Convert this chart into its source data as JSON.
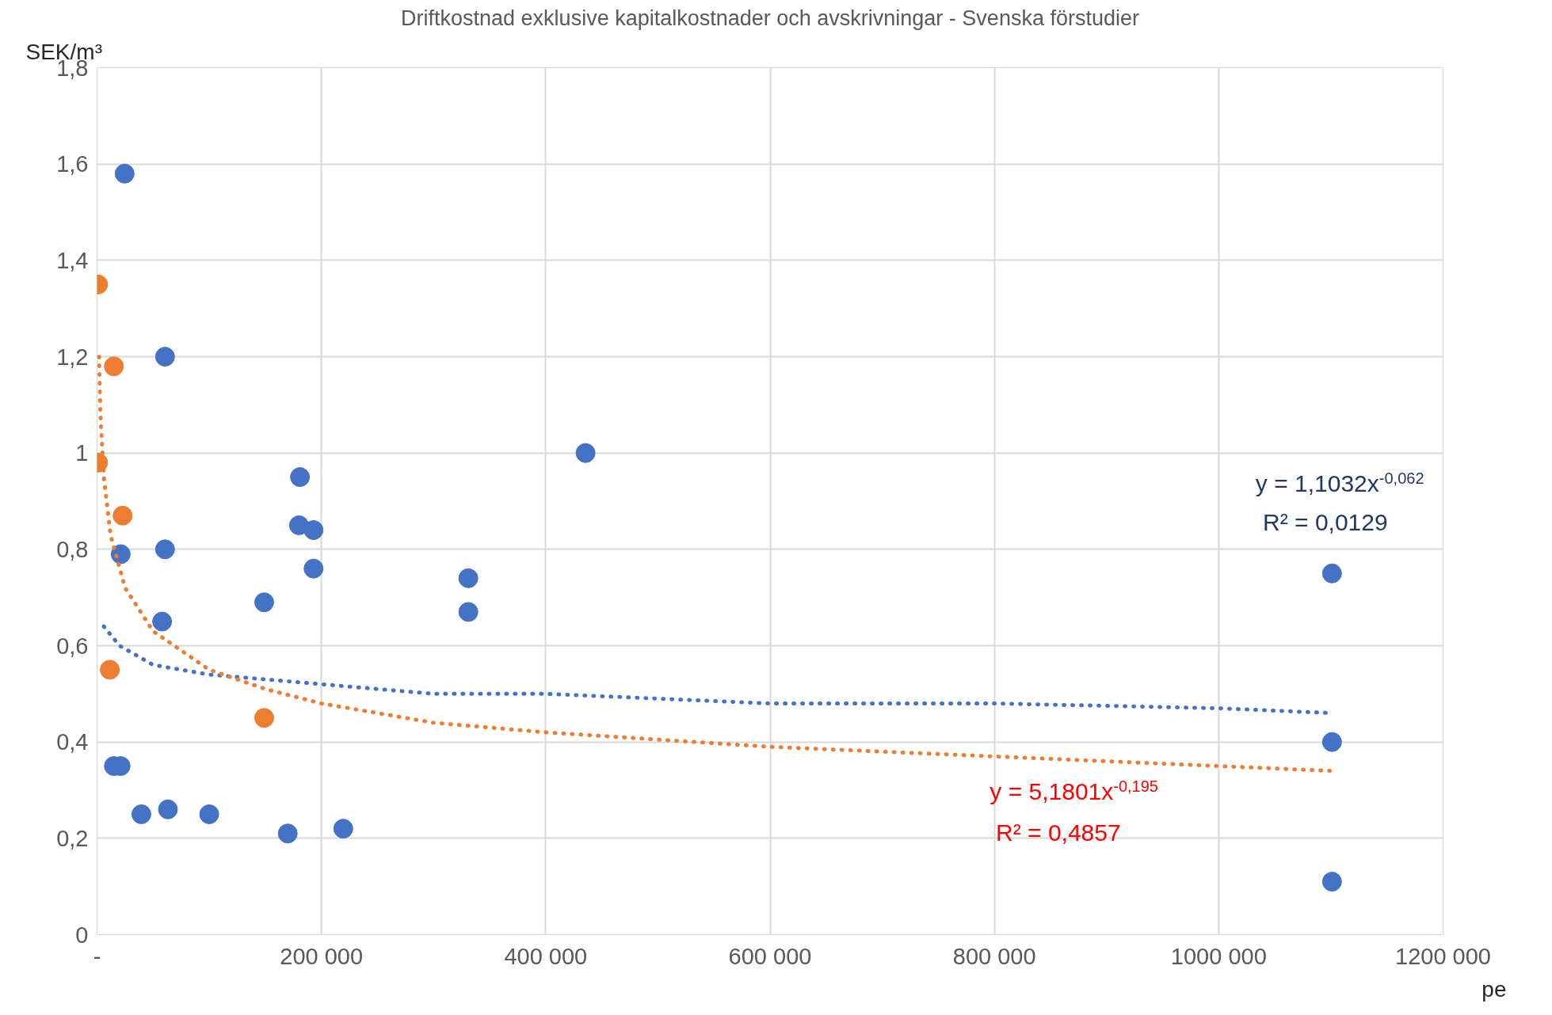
{
  "chart_data": {
    "type": "scatter",
    "title": "Driftkostnad exklusive kapitalkostnader och avskrivningar - Svenska förstudier",
    "xlabel": "pe",
    "ylabel": "SEK/m³",
    "xlim": [
      0,
      1200000
    ],
    "ylim": [
      0,
      1.8
    ],
    "xticks": [
      {
        "value": 0,
        "label": "-"
      },
      {
        "value": 200000,
        "label": "200 000"
      },
      {
        "value": 400000,
        "label": "400 000"
      },
      {
        "value": 600000,
        "label": "600 000"
      },
      {
        "value": 800000,
        "label": "800 000"
      },
      {
        "value": 1000000,
        "label": "1000 000"
      },
      {
        "value": 1200000,
        "label": "1200 000"
      }
    ],
    "yticks": [
      0,
      {
        "value": 0.2,
        "label": "0,2"
      },
      {
        "value": 0.4,
        "label": "0,4"
      },
      {
        "value": 0.6,
        "label": "0,6"
      },
      {
        "value": 0.8,
        "label": "0,8"
      },
      1,
      {
        "value": 1.2,
        "label": "1,2"
      },
      {
        "value": 1.4,
        "label": "1,4"
      },
      {
        "value": 1.6,
        "label": "1,6"
      },
      {
        "value": 1.8,
        "label": "1,8"
      }
    ],
    "grid": true,
    "marker": "circle",
    "series": [
      {
        "color": "#4472c4",
        "x": [
          24600,
          60600,
          435500,
          180900,
          180000,
          193000,
          193000,
          21100,
          60600,
          331000,
          331000,
          149000,
          58000,
          1101000,
          1101000,
          1101000,
          15000,
          21000,
          39500,
          63200,
          100000,
          170000,
          219500
        ],
        "values": [
          1.58,
          1.2,
          1.0,
          0.95,
          0.85,
          0.84,
          0.76,
          0.79,
          0.8,
          0.74,
          0.67,
          0.69,
          0.65,
          0.75,
          0.4,
          0.11,
          0.35,
          0.35,
          0.25,
          0.26,
          0.25,
          0.21,
          0.22
        ]
      },
      {
        "color": "#ed7d31",
        "x": [
          900,
          15000,
          900,
          22800,
          11400,
          149000
        ],
        "values": [
          1.35,
          1.18,
          0.98,
          0.87,
          0.55,
          0.45
        ]
      },
      {
        "type": "line",
        "color": "#4472c4",
        "line_style": "dotted",
        "marker": "none",
        "x": [
          6000,
          20000,
          50000,
          100000,
          200000,
          300000,
          400000,
          600000,
          800000,
          1000000,
          1101000
        ],
        "values": [
          0.64,
          0.6,
          0.56,
          0.54,
          0.52,
          0.5,
          0.5,
          0.48,
          0.48,
          0.47,
          0.46
        ]
      },
      {
        "type": "line",
        "color": "#ed7d31",
        "line_style": "dotted",
        "marker": "none",
        "x": [
          1800,
          3000,
          6000,
          12000,
          25000,
          50000,
          100000,
          150000,
          200000,
          300000,
          400000,
          600000,
          800000,
          1000000,
          1101000
        ],
        "values": [
          1.2,
          1.08,
          0.95,
          0.83,
          0.72,
          0.63,
          0.55,
          0.51,
          0.48,
          0.44,
          0.42,
          0.39,
          0.37,
          0.35,
          0.34
        ]
      }
    ],
    "annotations": [
      "y = 1,1032x$^{-0,062}$",
      "R² = 0,0129",
      "y = 5,1801x$^{-0,195}$",
      "R² = 0,4857"
    ]
  }
}
